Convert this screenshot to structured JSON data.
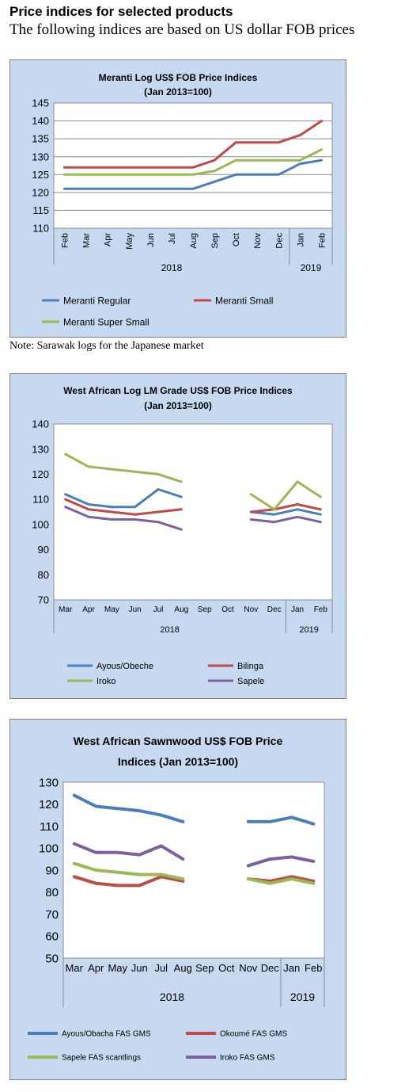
{
  "heading": "Price indices for selected products",
  "subheading": "The following indices are based on US dollar FOB prices",
  "note": "Note: Sarawak logs for the Japanese market",
  "chart_data": [
    {
      "type": "line",
      "title": "Meranti Log US$ FOB Price Indices",
      "subtitle": "(Jan 2013=100)",
      "categories": [
        "Feb",
        "Mar",
        "Apr",
        "May",
        "Jun",
        "Jul",
        "Aug",
        "Sep",
        "Oct",
        "Nov",
        "Dec",
        "Jan",
        "Feb"
      ],
      "year_groups": [
        {
          "label": "2018",
          "count": 11
        },
        {
          "label": "2019",
          "count": 2
        }
      ],
      "ylim": [
        110,
        145
      ],
      "yticks": [
        110,
        115,
        120,
        125,
        130,
        135,
        140,
        145
      ],
      "grid": true,
      "rotated_xlabels": true,
      "legend_position": "bottom",
      "legend_columns": 2,
      "series": [
        {
          "name": "Meranti Regular",
          "color": "#4a7ebb",
          "values": [
            121,
            121,
            121,
            121,
            121,
            121,
            121,
            123,
            125,
            125,
            125,
            128,
            129
          ]
        },
        {
          "name": "Meranti Small",
          "color": "#be4b48",
          "values": [
            127,
            127,
            127,
            127,
            127,
            127,
            127,
            129,
            134,
            134,
            134,
            136,
            140
          ]
        },
        {
          "name": "Meranti Super Small",
          "color": "#98b954",
          "values": [
            125,
            125,
            125,
            125,
            125,
            125,
            125,
            126,
            129,
            129,
            129,
            129,
            132
          ]
        }
      ]
    },
    {
      "type": "line",
      "title": "West African Log LM Grade US$ FOB Price Indices",
      "subtitle": "(Jan 2013=100)",
      "categories": [
        "Mar",
        "Apr",
        "May",
        "Jun",
        "Jul",
        "Aug",
        "Sep",
        "Oct",
        "Nov",
        "Dec",
        "Jan",
        "Feb"
      ],
      "year_groups": [
        {
          "label": "2018",
          "count": 10
        },
        {
          "label": "2019",
          "count": 2
        }
      ],
      "ylim": [
        70,
        140
      ],
      "yticks": [
        70,
        80,
        90,
        100,
        110,
        120,
        130,
        140
      ],
      "grid": false,
      "rotated_xlabels": false,
      "legend_position": "bottom",
      "legend_columns": 2,
      "series": [
        {
          "name": "Ayous/Obeche",
          "color": "#4a7ebb",
          "values": [
            112,
            108,
            107,
            107,
            114,
            111,
            null,
            null,
            105,
            104,
            106,
            104
          ]
        },
        {
          "name": "Bilinga",
          "color": "#be4b48",
          "values": [
            110,
            106,
            105,
            104,
            105,
            106,
            null,
            null,
            105,
            106,
            108,
            106
          ]
        },
        {
          "name": "Iroko",
          "color": "#98b954",
          "values": [
            128,
            123,
            122,
            121,
            120,
            117,
            null,
            null,
            112,
            106,
            117,
            111
          ]
        },
        {
          "name": "Sapele",
          "color": "#7d60a0",
          "values": [
            107,
            103,
            102,
            102,
            101,
            98,
            null,
            null,
            102,
            101,
            103,
            101
          ]
        }
      ]
    },
    {
      "type": "line",
      "title": "West African Sawnwood US$ FOB Price",
      "subtitle": "Indices (Jan 2013=100)",
      "categories": [
        "Mar",
        "Apr",
        "May",
        "Jun",
        "Jul",
        "Aug",
        "Sep",
        "Oct",
        "Nov",
        "Dec",
        "Jan",
        "Feb"
      ],
      "year_groups": [
        {
          "label": "2018",
          "count": 10
        },
        {
          "label": "2019",
          "count": 2
        }
      ],
      "ylim": [
        50,
        130
      ],
      "yticks": [
        50,
        60,
        70,
        80,
        90,
        100,
        110,
        120,
        130
      ],
      "grid": false,
      "rotated_xlabels": false,
      "legend_position": "bottom",
      "legend_columns": 2,
      "series": [
        {
          "name": "Ayous/Obacha  FAS GMS",
          "color": "#4a7ebb",
          "values": [
            124,
            119,
            118,
            117,
            115,
            112,
            null,
            null,
            112,
            112,
            114,
            111
          ]
        },
        {
          "name": "Okoumé  FAS GMS",
          "color": "#be4b48",
          "values": [
            87,
            84,
            83,
            83,
            87,
            85,
            null,
            null,
            86,
            85,
            87,
            85
          ]
        },
        {
          "name": "Sapele FAS scantlings",
          "color": "#98b954",
          "values": [
            93,
            90,
            89,
            88,
            88,
            86,
            null,
            null,
            86,
            84,
            86,
            84
          ]
        },
        {
          "name": "Iroko FAS GMS",
          "color": "#7d60a0",
          "values": [
            102,
            98,
            98,
            97,
            101,
            95,
            null,
            null,
            92,
            95,
            96,
            94
          ]
        }
      ]
    }
  ]
}
